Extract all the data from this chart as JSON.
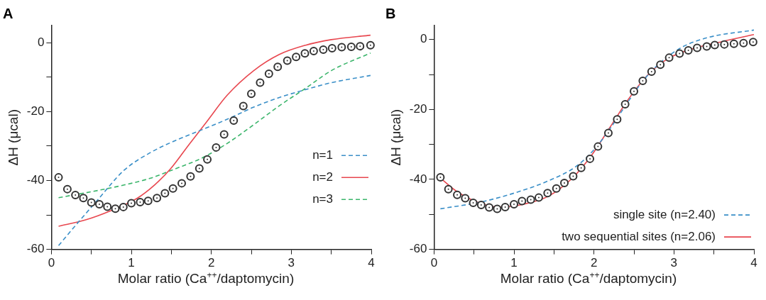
{
  "chart_data": [
    {
      "type": "line",
      "title": "A",
      "xlabel": "Molar ratio (Ca$^{++}$/daptomycin)",
      "ylabel": "ΔH (μcal)",
      "xlim": [
        0,
        4
      ],
      "ylim": [
        -60,
        5
      ],
      "xticks": [
        0,
        {
          "value": 0.5,
          "label": null
        },
        1,
        {
          "value": 1.5,
          "label": null
        },
        2,
        {
          "value": 2.5,
          "label": null
        },
        3,
        {
          "value": 3.5,
          "label": null
        },
        4
      ],
      "yticks": [
        -60,
        {
          "value": -50,
          "label": null
        },
        -40,
        {
          "value": -30,
          "label": null
        },
        -20,
        {
          "value": -10,
          "label": null
        },
        0
      ],
      "grid": false,
      "legend": "right",
      "series": [
        {
          "type": "scatter",
          "marker": "circle",
          "color": "#333333",
          "x": [
            0.09,
            0.2,
            0.3,
            0.4,
            0.5,
            0.6,
            0.7,
            0.8,
            0.9,
            1.0,
            1.11,
            1.21,
            1.32,
            1.42,
            1.52,
            1.63,
            1.74,
            1.85,
            1.95,
            2.06,
            2.16,
            2.28,
            2.4,
            2.5,
            2.61,
            2.72,
            2.83,
            2.95,
            3.06,
            3.17,
            3.28,
            3.4,
            3.51,
            3.63,
            3.75,
            3.86,
            3.99
          ],
          "values": [
            -39.1,
            -42.5,
            -44.2,
            -45.1,
            -46.4,
            -46.9,
            -47.6,
            -48.2,
            -47.7,
            -46.6,
            -46.3,
            -45.9,
            -45.1,
            -43.7,
            -42.3,
            -40.8,
            -38.8,
            -36.5,
            -33.9,
            -30.4,
            -26.6,
            -22.6,
            -18.4,
            -14.8,
            -11.6,
            -9.0,
            -7.0,
            -5.2,
            -4.1,
            -3.1,
            -2.4,
            -2.0,
            -1.6,
            -1.3,
            -1.2,
            -1.0,
            -0.7
          ]
        },
        {
          "type": "line",
          "name": "n=1",
          "color": "#3a8fc8",
          "line_style": "dashed",
          "x": [
            0.09,
            0.26,
            0.58,
            0.91,
            1.23,
            1.55,
            1.88,
            2.2,
            2.53,
            2.85,
            3.18,
            3.5,
            3.99
          ],
          "values": [
            -58.9,
            -54.2,
            -45.6,
            -37.0,
            -32.0,
            -28.4,
            -25.3,
            -22.2,
            -18.7,
            -15.9,
            -13.6,
            -11.6,
            -9.5
          ]
        },
        {
          "type": "line",
          "name": "n=2",
          "color": "#e8474f",
          "line_style": "solid",
          "x": [
            0.09,
            0.42,
            0.74,
            1.07,
            1.29,
            1.49,
            1.72,
            1.94,
            2.2,
            2.53,
            2.85,
            3.18,
            3.5,
            3.99
          ],
          "values": [
            -53.3,
            -51.5,
            -48.8,
            -45.2,
            -41.3,
            -36.6,
            -29.6,
            -23.0,
            -15.2,
            -8.1,
            -3.4,
            -0.7,
            0.9,
            2.2
          ]
        },
        {
          "type": "line",
          "name": "n=3",
          "color": "#3bb56b",
          "line_style": "dashed",
          "x": [
            0.09,
            0.58,
            0.91,
            1.23,
            1.55,
            1.88,
            2.2,
            2.53,
            2.85,
            3.18,
            3.5,
            3.99
          ],
          "values": [
            -45.0,
            -42.9,
            -41.3,
            -39.4,
            -36.6,
            -33.5,
            -29.2,
            -23.8,
            -18.3,
            -13.2,
            -8.1,
            -3.0
          ]
        }
      ]
    },
    {
      "type": "line",
      "title": "B",
      "xlabel": "Molar ratio (Ca$^{++}$/daptomycin)",
      "ylabel": "ΔH (μcal)",
      "xlim": [
        0,
        4
      ],
      "ylim": [
        -60,
        4
      ],
      "xticks": [
        0,
        {
          "value": 0.5,
          "label": null
        },
        1,
        {
          "value": 1.5,
          "label": null
        },
        2,
        {
          "value": 2.5,
          "label": null
        },
        3,
        {
          "value": 3.5,
          "label": null
        },
        4
      ],
      "yticks": [
        -60,
        {
          "value": -50,
          "label": null
        },
        -40,
        {
          "value": -30,
          "label": null
        },
        -20,
        {
          "value": -10,
          "label": null
        },
        0
      ],
      "grid": false,
      "legend": "bottom right",
      "series": [
        {
          "type": "scatter",
          "marker": "circle",
          "color": "#333333",
          "x": [
            0.08,
            0.18,
            0.29,
            0.39,
            0.49,
            0.59,
            0.69,
            0.79,
            0.89,
            1.0,
            1.1,
            1.21,
            1.31,
            1.42,
            1.53,
            1.63,
            1.74,
            1.84,
            1.95,
            2.05,
            2.18,
            2.29,
            2.39,
            2.5,
            2.61,
            2.72,
            2.83,
            2.94,
            3.07,
            3.18,
            3.29,
            3.41,
            3.51,
            3.63,
            3.75,
            3.87,
            3.99
          ],
          "values": [
            -39.4,
            -42.8,
            -44.4,
            -45.4,
            -46.7,
            -47.3,
            -48.0,
            -48.4,
            -47.9,
            -47.1,
            -46.2,
            -45.8,
            -45.2,
            -43.9,
            -42.6,
            -41.0,
            -39.1,
            -36.7,
            -34.1,
            -30.6,
            -26.7,
            -22.8,
            -18.5,
            -14.8,
            -11.8,
            -9.2,
            -7.2,
            -5.2,
            -4.0,
            -3.1,
            -2.4,
            -2.0,
            -1.6,
            -1.4,
            -1.2,
            -1.0,
            -0.7
          ]
        },
        {
          "type": "line",
          "name": "single site (n=2.40)",
          "color": "#3a8fc8",
          "line_style": "dashed",
          "x": [
            0.08,
            0.6,
            1.1,
            1.43,
            1.77,
            2.0,
            2.2,
            2.4,
            2.6,
            2.83,
            3.1,
            3.43,
            4.0
          ],
          "values": [
            -48.4,
            -46.4,
            -43.2,
            -40.4,
            -36.4,
            -31.5,
            -25.5,
            -18.7,
            -12.2,
            -6.6,
            -2.2,
            0.6,
            2.7
          ]
        },
        {
          "type": "line",
          "name": "two sequential sites (n=2.06)",
          "color": "#e8474f",
          "line_style": "solid",
          "x": [
            0.08,
            0.27,
            0.53,
            0.8,
            1.1,
            1.43,
            1.73,
            1.97,
            2.2,
            2.43,
            2.67,
            2.93,
            3.27,
            3.6,
            4.0
          ],
          "values": [
            -39.6,
            -43.2,
            -46.4,
            -47.9,
            -47.2,
            -44.8,
            -39.6,
            -33.1,
            -25.1,
            -17.1,
            -10.2,
            -5.4,
            -2.4,
            -0.6,
            1.4
          ]
        }
      ]
    }
  ]
}
